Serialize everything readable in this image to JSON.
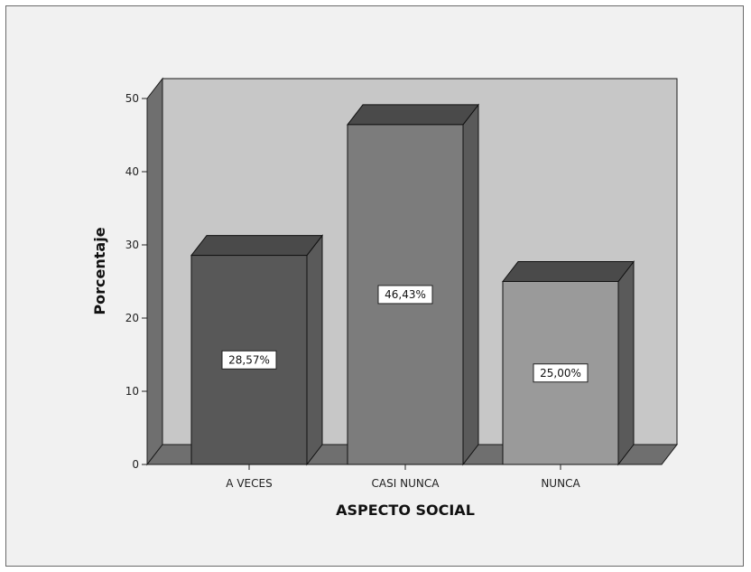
{
  "chart_data": {
    "type": "bar",
    "categories": [
      "A VECES",
      "CASI NUNCA",
      "NUNCA"
    ],
    "values": [
      28.57,
      46.43,
      25.0
    ],
    "data_labels": [
      "28,57%",
      "46,43%",
      "25,00%"
    ],
    "xlabel": "ASPECTO SOCIAL",
    "ylabel": "Porcentaje",
    "ylim": [
      0,
      50
    ],
    "yticks": [
      0,
      10,
      20,
      30,
      40,
      50
    ],
    "bar_colors": [
      "#585858",
      "#7c7c7c",
      "#9a9a9a"
    ],
    "plot_background": "#c7c7c7",
    "three_d": true,
    "grid": false,
    "legend": "none"
  }
}
